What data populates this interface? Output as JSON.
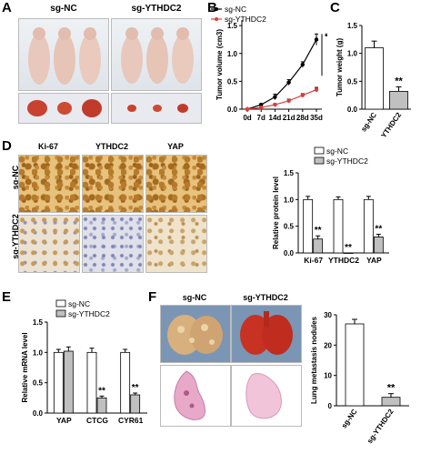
{
  "panels": {
    "A": "A",
    "B": "B",
    "C": "C",
    "D": "D",
    "E": "E",
    "F": "F"
  },
  "groups": {
    "nc": "sg-NC",
    "ythdc2": "sg-YTHDC2"
  },
  "ihc_headers": [
    "Ki-67",
    "YTHDC2",
    "YAP"
  ],
  "significance": {
    "triple": "***",
    "double": "**"
  },
  "colors": {
    "nc": "#000000",
    "ythdc2": "#e03c3c",
    "bar_nc": "#ffffff",
    "bar_ythdc2": "#c0c0c0"
  },
  "chart_data": [
    {
      "id": "B",
      "type": "line",
      "x": [
        "0d",
        "7d",
        "14d",
        "21d",
        "28d",
        "35d"
      ],
      "series": [
        {
          "name": "sg-NC",
          "values": [
            0.0,
            0.08,
            0.22,
            0.48,
            0.8,
            1.25
          ],
          "errors": [
            0,
            0.02,
            0.05,
            0.05,
            0.05,
            0.1
          ]
        },
        {
          "name": "sg-YTHDC2",
          "values": [
            0.0,
            0.03,
            0.08,
            0.15,
            0.25,
            0.35
          ],
          "errors": [
            0,
            0.01,
            0.02,
            0.03,
            0.03,
            0.04
          ]
        }
      ],
      "ylabel": "Tumor volume (cm3)",
      "ylim": [
        0,
        1.6
      ],
      "yticks": [
        "0.0",
        "0.5",
        "1.0",
        "1.5"
      ],
      "legend": "top-left",
      "significance": "***"
    },
    {
      "id": "C",
      "type": "bar",
      "categories": [
        "sg-NC",
        "sg-YTHDC2"
      ],
      "values": [
        1.1,
        0.32
      ],
      "errors": [
        0.12,
        0.08
      ],
      "ylabel": "Tumor weight (g)",
      "ylim": [
        0,
        1.5
      ],
      "yticks": [
        "0.0",
        "0.5",
        "1.0",
        "1.5"
      ],
      "significance": [
        "",
        "**"
      ]
    },
    {
      "id": "D",
      "type": "bar",
      "categories": [
        "Ki-67",
        "YTHDC2",
        "YAP"
      ],
      "series": [
        {
          "name": "sg-NC",
          "values": [
            1.0,
            1.0,
            1.0
          ],
          "errors": [
            0.06,
            0.05,
            0.06
          ]
        },
        {
          "name": "sg-YTHDC2",
          "values": [
            0.26,
            0.0,
            0.3
          ],
          "errors": [
            0.06,
            0.0,
            0.05
          ]
        }
      ],
      "ylabel": "Relative protein level",
      "ylim": [
        0,
        1.5
      ],
      "yticks": [
        "0.0",
        "0.5",
        "1.0",
        "1.5"
      ],
      "legend": "top-right",
      "significance": [
        "**",
        "**",
        "**"
      ]
    },
    {
      "id": "E",
      "type": "bar",
      "categories": [
        "YAP",
        "CTCG",
        "CYR61"
      ],
      "series": [
        {
          "name": "sg-NC",
          "values": [
            1.0,
            1.0,
            1.0
          ],
          "errors": [
            0.05,
            0.07,
            0.05
          ]
        },
        {
          "name": "sg-YTHDC2",
          "values": [
            1.02,
            0.25,
            0.3
          ],
          "errors": [
            0.07,
            0.03,
            0.03
          ]
        }
      ],
      "ylabel": "Relative mRNA level",
      "ylim": [
        0,
        1.5
      ],
      "yticks": [
        "0.0",
        "0.5",
        "1.0",
        "1.5"
      ],
      "legend": "top-left",
      "significance": [
        "",
        "**",
        "**"
      ]
    },
    {
      "id": "F",
      "type": "bar",
      "categories": [
        "sg-NC",
        "sg-YTHDC2"
      ],
      "values": [
        27,
        2.8
      ],
      "errors": [
        1.5,
        1.2
      ],
      "ylabel": "Lung metastasis nodules",
      "ylim": [
        0,
        30
      ],
      "yticks": [
        "0",
        "10",
        "20",
        "30"
      ],
      "significance": [
        "",
        "**"
      ]
    }
  ]
}
